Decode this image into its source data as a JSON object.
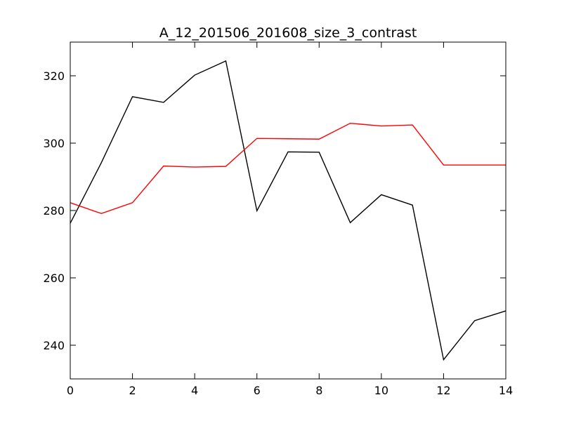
{
  "chart_data": {
    "type": "line",
    "title": "A_12_201506_201608_size_3_contrast",
    "xlabel": "",
    "ylabel": "",
    "xlim": [
      0,
      14
    ],
    "ylim": [
      230,
      330
    ],
    "xticks": [
      0,
      2,
      4,
      6,
      8,
      10,
      12,
      14
    ],
    "yticks": [
      240,
      260,
      280,
      300,
      320
    ],
    "grid": false,
    "legend": "none",
    "x": [
      0,
      1,
      2,
      3,
      4,
      5,
      6,
      7,
      8,
      9,
      10,
      11,
      12,
      13,
      14
    ],
    "series": [
      {
        "color": "#000000",
        "values": [
          276.2,
          294.2,
          313.8,
          312.1,
          320.2,
          324.4,
          279.9,
          297.4,
          297.3,
          276.4,
          284.7,
          281.6,
          235.7,
          247.3,
          250.2
        ]
      },
      {
        "color": "#ff0000",
        "values": [
          282.3,
          279.1,
          282.3,
          293.2,
          292.9,
          293.1,
          301.4,
          301.3,
          301.2,
          305.9,
          305.1,
          305.4,
          293.5,
          293.5,
          293.5
        ]
      }
    ]
  }
}
